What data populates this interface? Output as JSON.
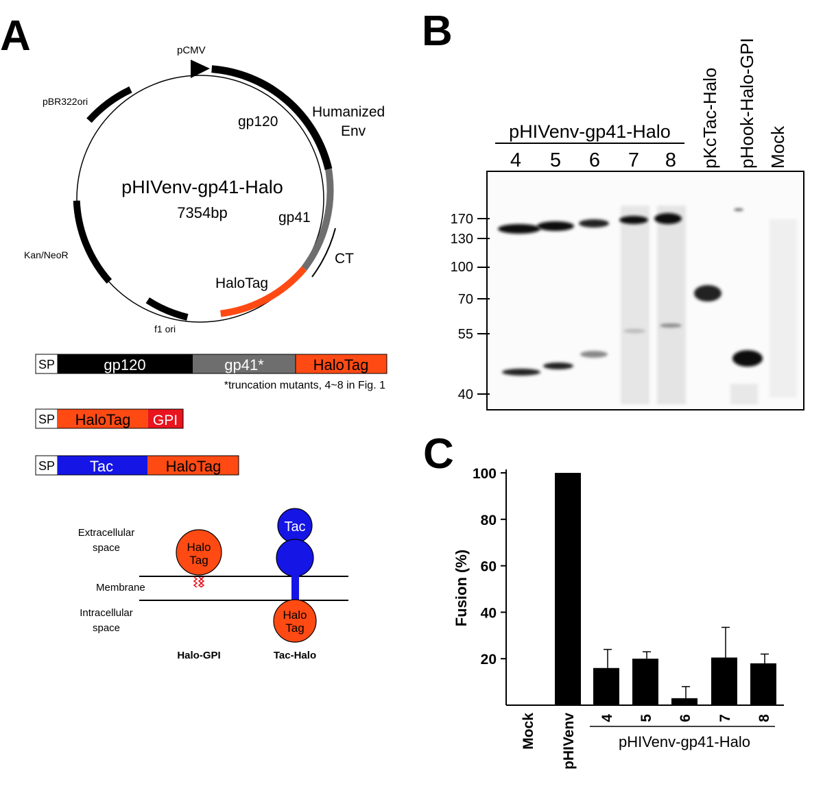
{
  "panel_a": {
    "label": "A",
    "plasmid": {
      "name": "pHIVenv-gp41-Halo",
      "size": "7354bp",
      "feature_labels": {
        "pcmv": "pCMV",
        "humanized_env_line1": "Humanized",
        "humanized_env_line2": "Env",
        "gp120": "gp120",
        "gp41": "gp41",
        "ct": "CT",
        "halotag": "HaloTag",
        "f1_ori": "f1 ori",
        "kan_neor": "Kan/NeoR",
        "pbr322ori": "pBR322ori"
      }
    },
    "constructs": {
      "env": {
        "sp": "SP",
        "gp120": "gp120",
        "gp41": "gp41*",
        "halotag": "HaloTag",
        "footnote": "*truncation mutants, 4~8 in Fig. 1"
      },
      "gpi": {
        "sp": "SP",
        "halotag": "HaloTag",
        "gpi": "GPI"
      },
      "tac": {
        "sp": "SP",
        "tac": "Tac",
        "halotag": "HaloTag"
      }
    },
    "membrane": {
      "extracellular_line1": "Extracellular",
      "extracellular_line2": "space",
      "membrane": "Membrane",
      "intracellular_line1": "Intracellular",
      "intracellular_line2": "space",
      "halo_line1": "Halo",
      "halo_line2": "Tag",
      "tac": "Tac",
      "halo_gpi": "Halo-GPI",
      "tac_halo": "Tac-Halo"
    },
    "colors": {
      "gp120": "#000000",
      "gp41": "#6e6e6e",
      "halotag": "#ff4a14",
      "gpi": "#e8141e",
      "tac": "#1515e6"
    }
  },
  "panel_b": {
    "label": "B",
    "group_label": "pHIVenv-gp41-Halo",
    "lanes": [
      "4",
      "5",
      "6",
      "7",
      "8"
    ],
    "extra_lanes": [
      "pKcTac-Halo",
      "pHook-Halo-GPI",
      "Mock"
    ],
    "mw_markers": [
      "170",
      "130",
      "100",
      "70",
      "55",
      "40"
    ]
  },
  "panel_c": {
    "label": "C",
    "chart_data": {
      "type": "bar",
      "title": "",
      "xlabel": "",
      "ylabel": "Fusion (%)",
      "ylim": [
        0,
        100
      ],
      "yticks": [
        "20",
        "40",
        "60",
        "80",
        "100"
      ],
      "categories": [
        "Mock",
        "pHIVenv",
        "4",
        "5",
        "6",
        "7",
        "8"
      ],
      "values": [
        0,
        100,
        16,
        20,
        3,
        20.5,
        18
      ],
      "errors": [
        0,
        0.3,
        8,
        3,
        5,
        13,
        4
      ],
      "group_label": "pHIVenv-gp41-Halo"
    }
  }
}
